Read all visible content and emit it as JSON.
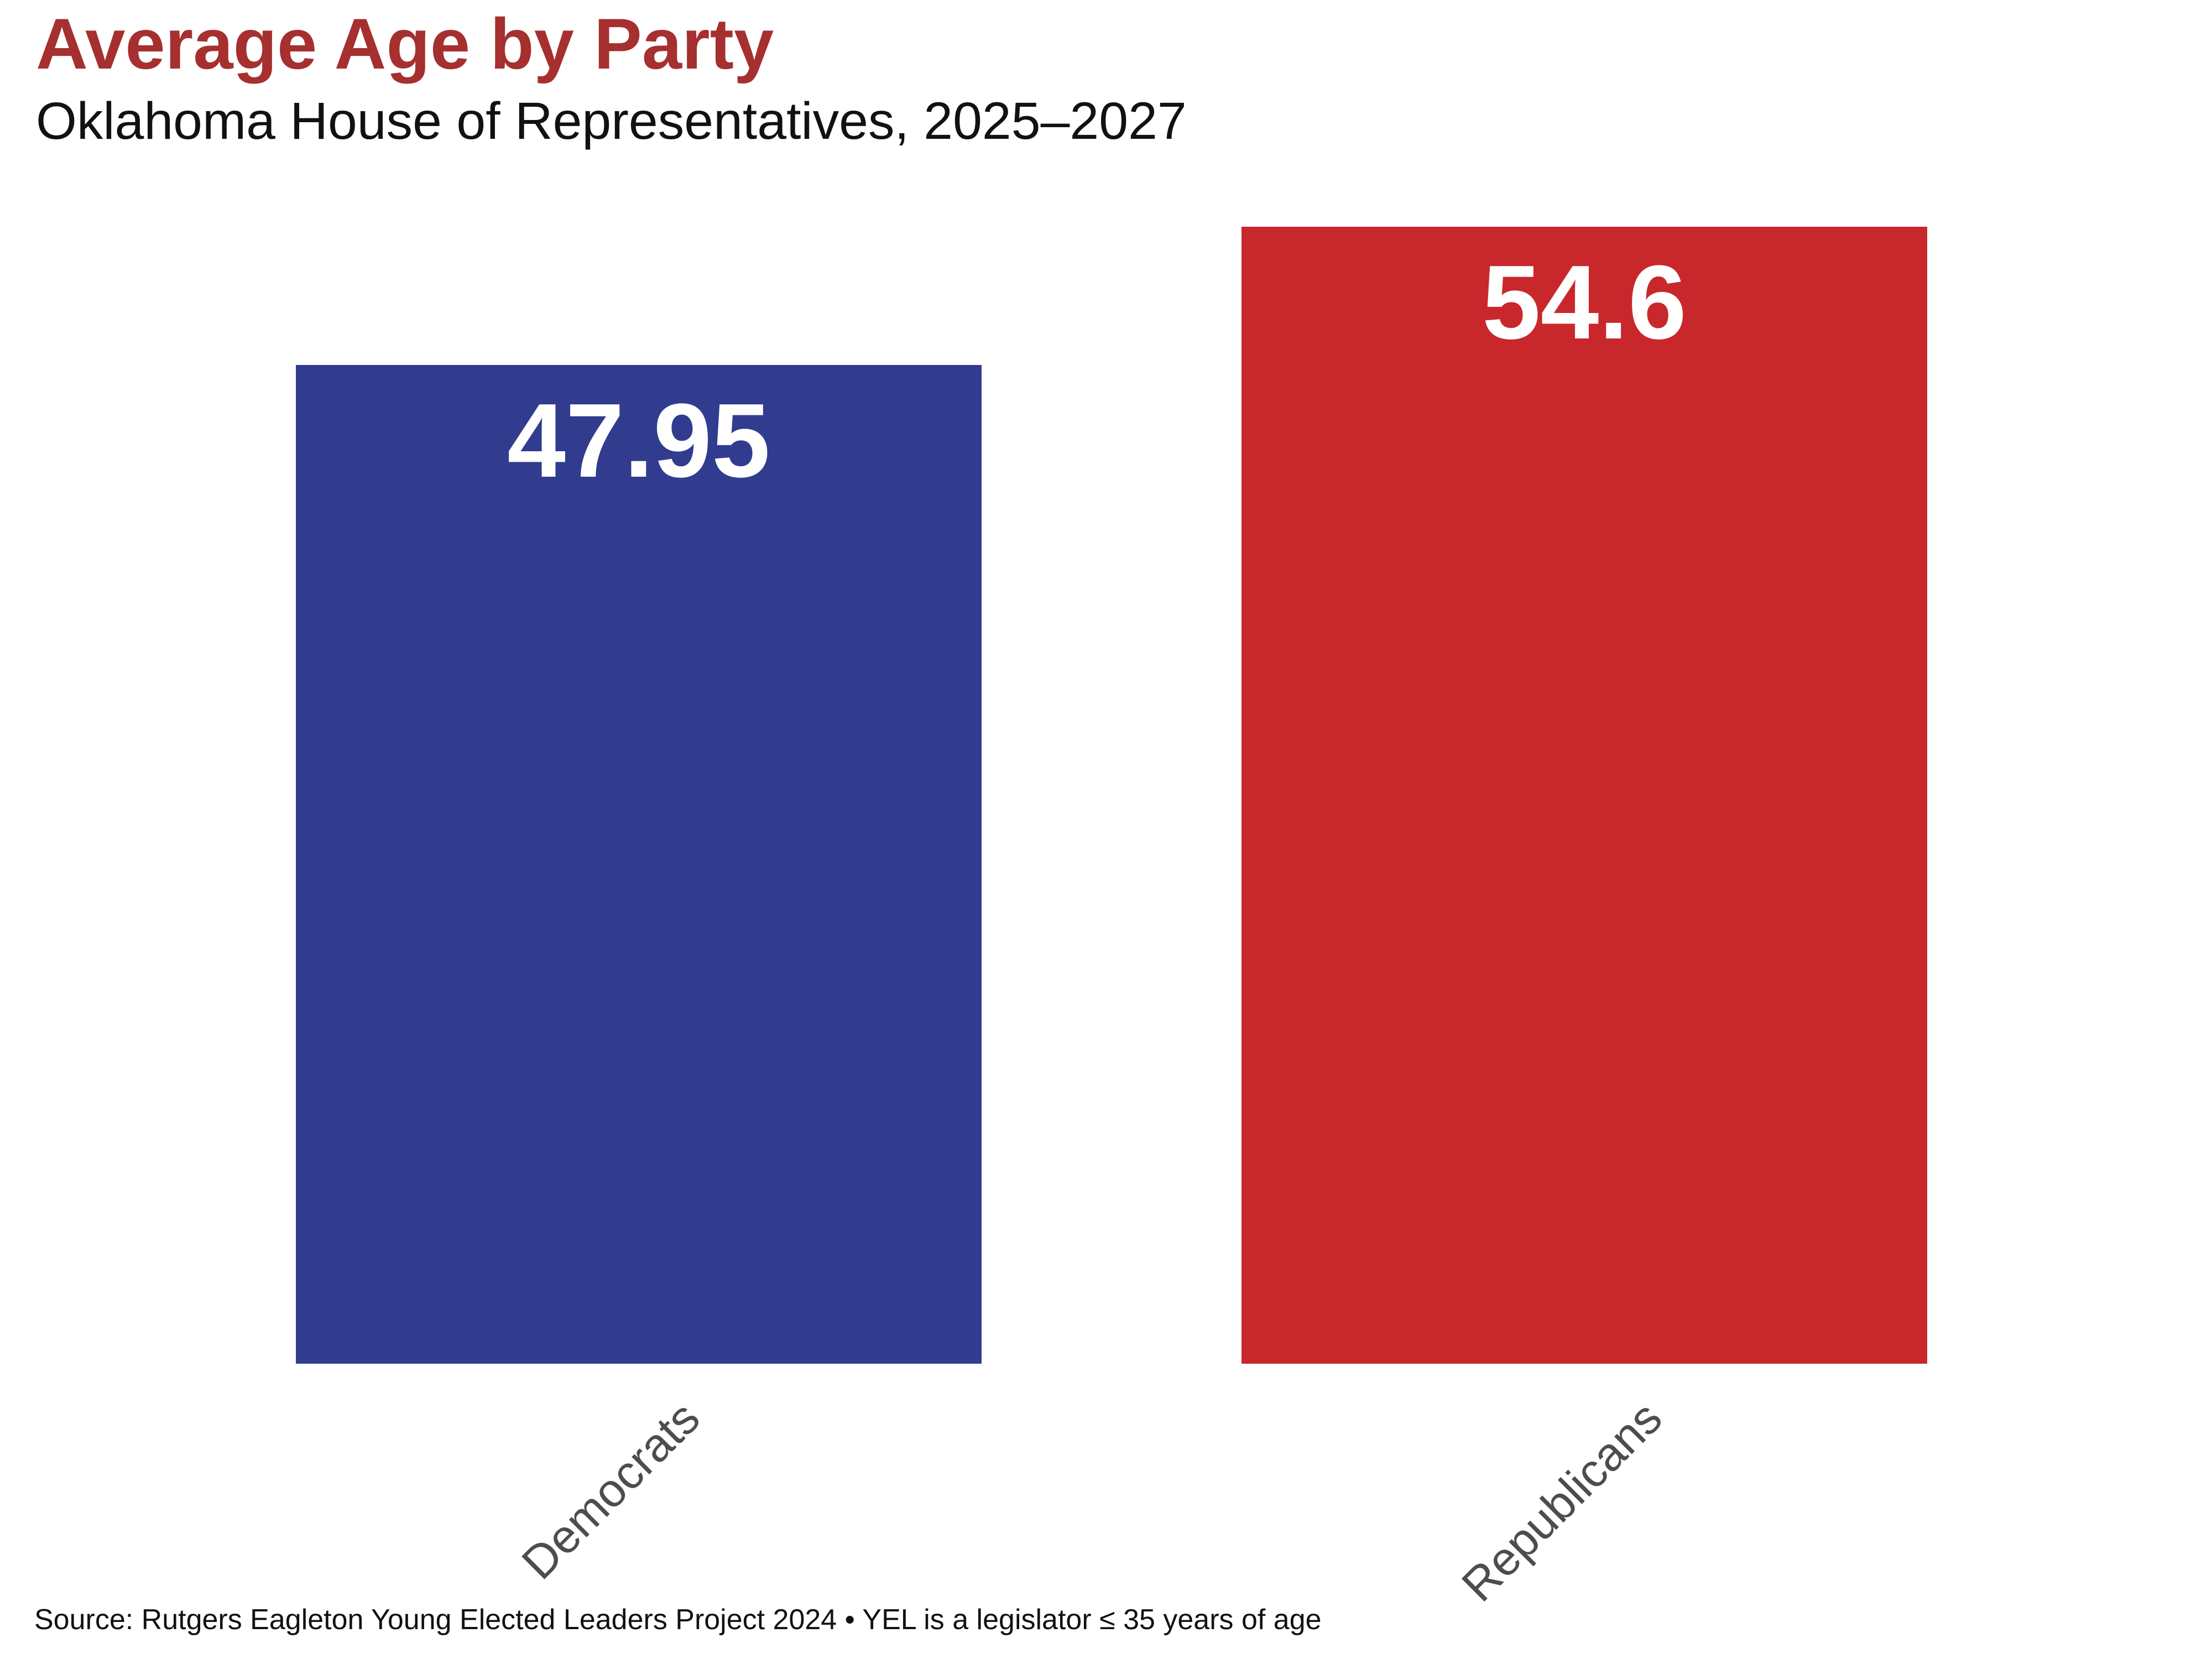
{
  "header": {
    "title": "Average Age by Party",
    "subtitle": "Oklahoma House of Representatives, 2025–2027",
    "title_color": "#A62F2F",
    "subtitle_color": "#111111"
  },
  "chart_data": {
    "type": "bar",
    "title": "Average Age by Party",
    "subtitle": "Oklahoma House of Representatives, 2025–2027",
    "categories": [
      "Democrats",
      "Republicans"
    ],
    "values": [
      47.95,
      54.6
    ],
    "value_labels": [
      "47.95",
      "54.6"
    ],
    "bar_colors": [
      "#313C8F",
      "#C8282C"
    ],
    "value_label_color": "#ffffff",
    "category_label_color": "#4D4D4D",
    "category_label_rotation_deg": 45,
    "xlabel": "",
    "ylabel": "",
    "ylim": [
      0,
      54.6
    ],
    "grid": false,
    "legend": false,
    "baseline": 0
  },
  "footer": {
    "source": "Source: Rutgers Eagleton Young Elected Leaders Project 2024 • YEL is a legislator ≤ 35 years of age"
  }
}
